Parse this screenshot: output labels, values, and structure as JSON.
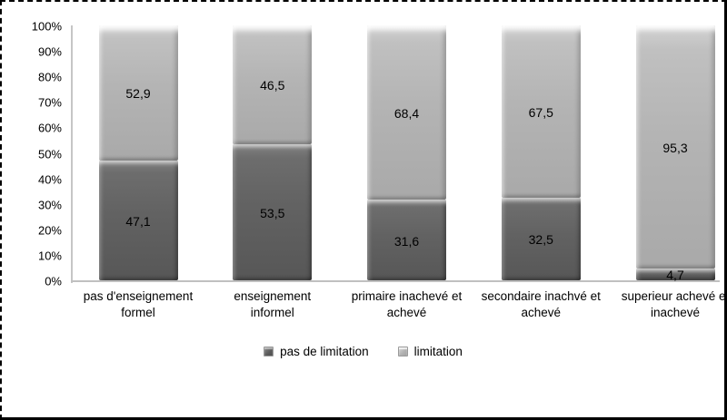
{
  "frame": {
    "background": "#ffffff",
    "border_color": "#000000"
  },
  "chart_data": {
    "type": "bar",
    "variant": "100-percent-stacked-column",
    "title": "",
    "xlabel": "",
    "ylabel": "",
    "grid": false,
    "categories": [
      "pas d'enseignement formel",
      "enseignement informel",
      "primaire inachevé et achevé",
      "secondaire inachvé et achevé",
      "superieur achevé et inachevé"
    ],
    "category_lines": [
      [
        "pas d'enseignement",
        "formel"
      ],
      [
        "enseignement",
        "informel"
      ],
      [
        "primaire inachevé et",
        "achevé"
      ],
      [
        "secondaire inachvé et",
        "achevé"
      ],
      [
        "superieur achevé et",
        "inachevé"
      ]
    ],
    "series": [
      {
        "name": "pas de limitation",
        "color": "#626262",
        "values": [
          47.1,
          53.5,
          31.6,
          32.5,
          4.7
        ],
        "labels": [
          "47,1",
          "53,5",
          "31,6",
          "32,5",
          "4,7"
        ]
      },
      {
        "name": "limitation",
        "color": "#b4b4b4",
        "values": [
          52.9,
          46.5,
          68.4,
          67.5,
          95.3
        ],
        "labels": [
          "52,9",
          "46,5",
          "68,4",
          "67,5",
          "95,3"
        ]
      }
    ],
    "y_axis": {
      "min": 0,
      "max": 100,
      "ticks": [
        "0%",
        "10%",
        "20%",
        "30%",
        "40%",
        "50%",
        "60%",
        "70%",
        "80%",
        "90%",
        "100%"
      ]
    },
    "legend": {
      "position": "bottom",
      "items": [
        {
          "label": "pas de limitation",
          "series": 0
        },
        {
          "label": "limitation",
          "series": 1
        }
      ]
    }
  }
}
